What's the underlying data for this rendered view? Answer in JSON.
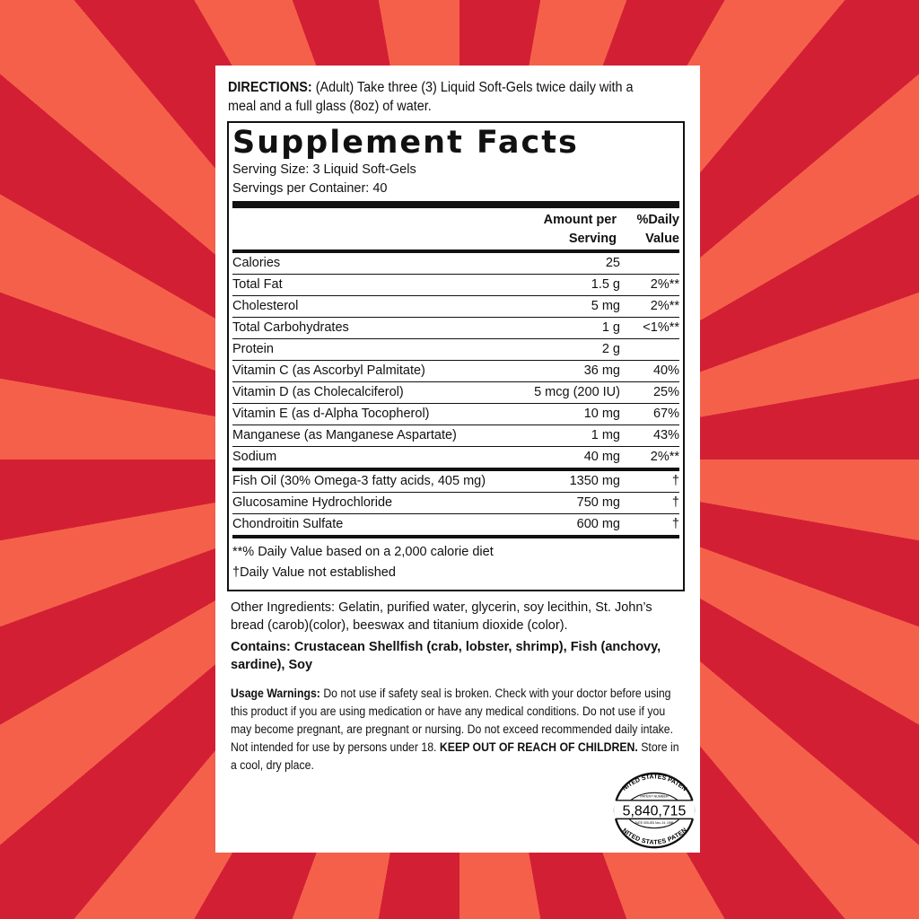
{
  "directions": {
    "label": "DIRECTIONS:",
    "text": " (Adult) Take three (3) Liquid Soft-Gels twice daily with a meal and a full glass (8oz) of water."
  },
  "facts": {
    "title": "Supplement Facts",
    "serving_size": "Serving Size:  3 Liquid Soft-Gels",
    "servings_per_container": "Servings per Container:  40",
    "col_amount": [
      "Amount per",
      "Serving"
    ],
    "col_dv": [
      "%Daily",
      "Value"
    ],
    "rows": [
      {
        "name": "Calories",
        "amount": "25",
        "dv": ""
      },
      {
        "name": "Total Fat",
        "amount": "1.5 g",
        "dv": "2%**"
      },
      {
        "name": "Cholesterol",
        "amount": "5 mg",
        "dv": "2%**"
      },
      {
        "name": "Total Carbohydrates",
        "amount": "1 g",
        "dv": "<1%**"
      },
      {
        "name": "Protein",
        "amount": "2 g",
        "dv": ""
      },
      {
        "name": "Vitamin C (as Ascorbyl Palmitate)",
        "amount": "36 mg",
        "dv": "40%"
      },
      {
        "name": "Vitamin D (as Cholecalciferol)",
        "amount": "5 mcg (200 IU)",
        "dv": "25%"
      },
      {
        "name": "Vitamin E (as d-Alpha Tocopherol)",
        "amount": "10 mg",
        "dv": "67%"
      },
      {
        "name": "Manganese (as Manganese Aspartate)",
        "amount": "1 mg",
        "dv": "43%"
      },
      {
        "name": "Sodium",
        "amount": "40 mg",
        "dv": "2%**"
      }
    ],
    "other_rows": [
      {
        "name": "Fish Oil (30% Omega-3 fatty acids, 405 mg)",
        "amount": "1350 mg",
        "dv": "†"
      },
      {
        "name": "Glucosamine Hydrochloride",
        "amount": "750 mg",
        "dv": "†"
      },
      {
        "name": "Chondroitin Sulfate",
        "amount": "600 mg",
        "dv": "†"
      }
    ],
    "footnote1": "**% Daily Value based on a 2,000 calorie diet",
    "footnote2": "†Daily Value not established"
  },
  "other_ingredients": "Other Ingredients: Gelatin, purified water, glycerin, soy lecithin, St. John’s bread (carob)(color), beeswax and titanium dioxide (color).",
  "contains": "Contains: Crustacean Shellfish (crab, lobster, shrimp), Fish (anchovy, sardine), Soy",
  "warnings": {
    "label": "Usage Warnings:",
    "text": " Do not use if safety seal is broken. Check with your doctor before using this product if you are using medication or have any medical conditions. Do not use if you may become pregnant, are pregnant or nursing. Do not exceed recommended daily intake. Not intended for use by persons under 18. ",
    "caps": "KEEP OUT OF REACH OF CHILDREN.",
    "end": " Store in a cool, dry place."
  },
  "seal": {
    "top": "UNITED STATES PATENT",
    "label": "PATENT NUMBER",
    "number": "5,840,715",
    "date": "DATE ISSUED Nov. 24, 1998",
    "bottom": "UNITED STATES PATENT"
  },
  "colors": {
    "ray_dark": "#d31f33",
    "ray_light": "#f5604b"
  }
}
